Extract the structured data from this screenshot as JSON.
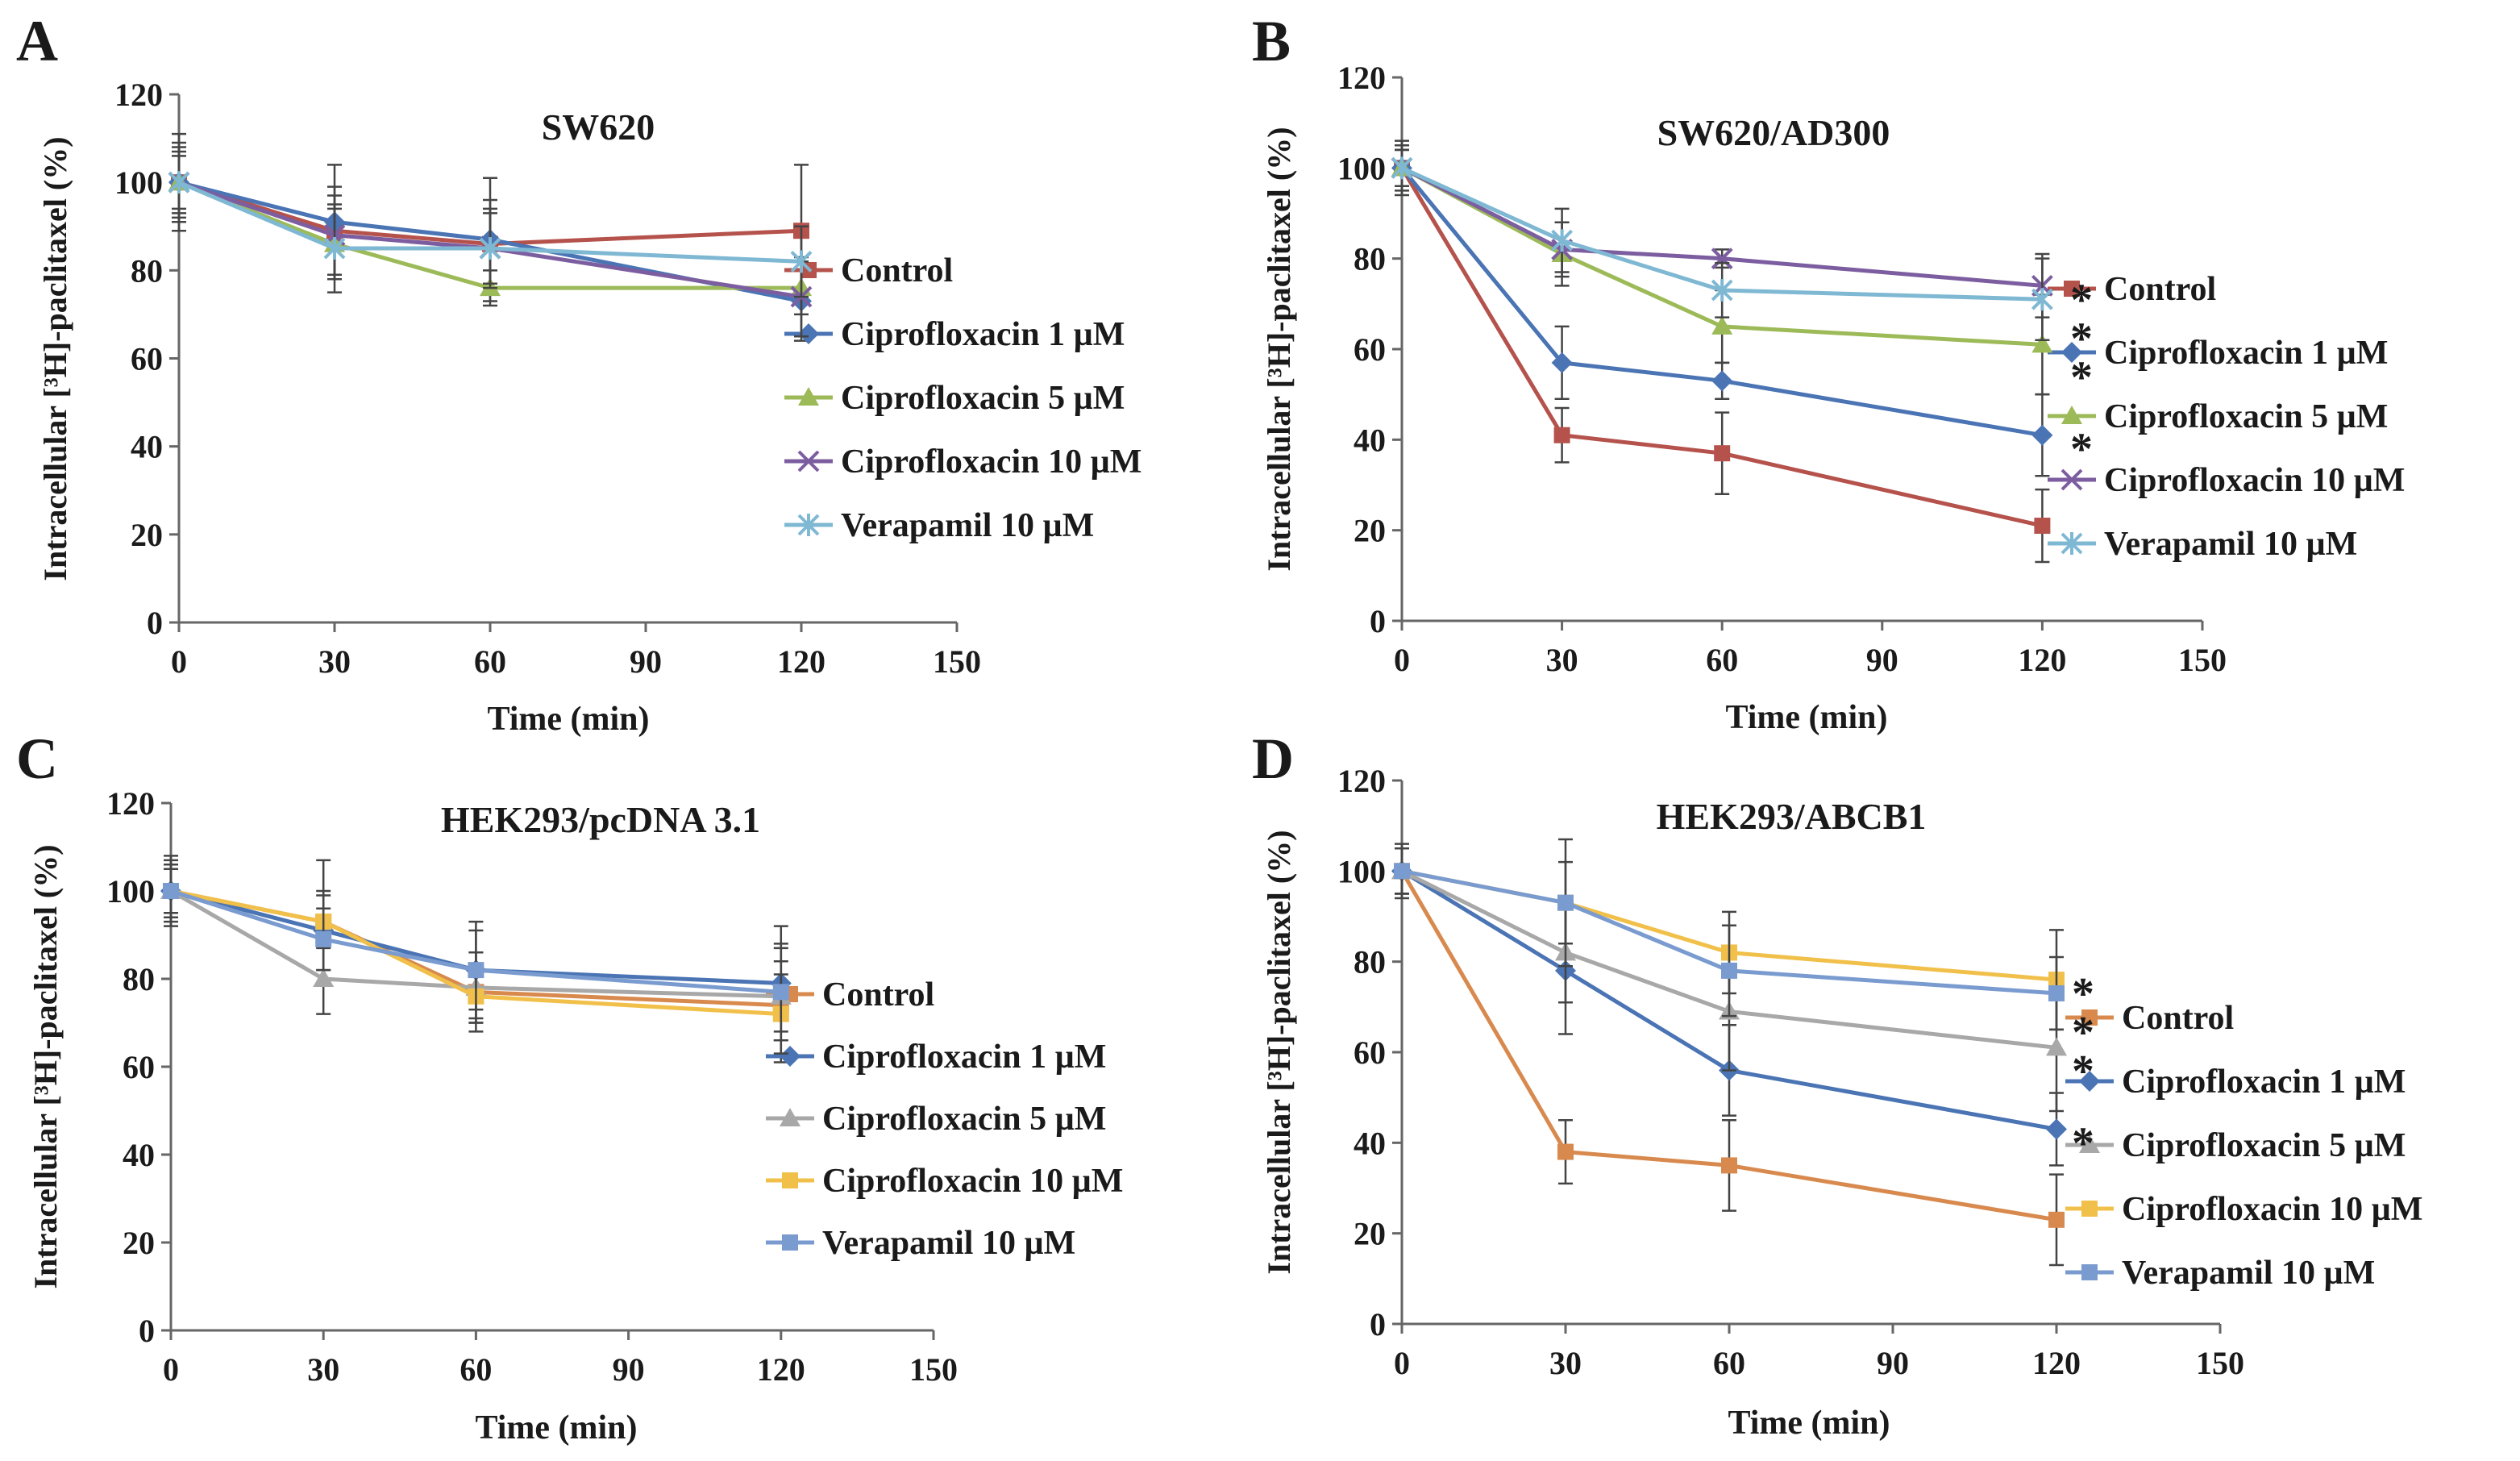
{
  "chart_data": [
    {
      "panel": "A",
      "type": "line",
      "title": "SW620",
      "xlabel": "Time (min)",
      "ylabel": "Intracellular [³H]-paclitaxel (%)",
      "xlim": [
        0,
        150
      ],
      "ylim": [
        0,
        120
      ],
      "xticks": [
        0,
        30,
        60,
        90,
        120,
        150
      ],
      "yticks": [
        0,
        20,
        40,
        60,
        80,
        100,
        120
      ],
      "x": [
        0,
        30,
        60,
        120
      ],
      "series": [
        {
          "name": "Control",
          "color": "#b5524c",
          "marker": "square",
          "values": [
            100,
            89,
            86,
            89
          ],
          "errors": [
            8,
            10,
            10,
            15
          ]
        },
        {
          "name": "Ciprofloxacin 1 µM",
          "color": "#4a74b4",
          "marker": "diamond",
          "values": [
            100,
            91,
            87,
            73
          ],
          "errors": [
            7,
            13,
            14,
            9
          ]
        },
        {
          "name": "Ciprofloxacin 5 µM",
          "color": "#9dba58",
          "marker": "triangle",
          "values": [
            100,
            86,
            76,
            76
          ],
          "errors": [
            6,
            8,
            4,
            6
          ]
        },
        {
          "name": "Ciprofloxacin 10 µM",
          "color": "#7c5ea0",
          "marker": "x",
          "values": [
            100,
            88,
            85,
            74
          ],
          "errors": [
            9,
            9,
            9,
            9
          ]
        },
        {
          "name": "Verapamil 10 µM",
          "color": "#7fb8d3",
          "marker": "star",
          "values": [
            100,
            85,
            85,
            82
          ],
          "errors": [
            11,
            10,
            8,
            8
          ]
        }
      ],
      "annotations": []
    },
    {
      "panel": "B",
      "type": "line",
      "title": "SW620/AD300",
      "xlabel": "Time (min)",
      "ylabel": "Intracellular [³H]-paclitaxel (%)",
      "xlim": [
        0,
        150
      ],
      "ylim": [
        0,
        120
      ],
      "xticks": [
        0,
        30,
        60,
        90,
        120,
        150
      ],
      "yticks": [
        0,
        20,
        40,
        60,
        80,
        100,
        120
      ],
      "x": [
        0,
        30,
        60,
        120
      ],
      "series": [
        {
          "name": "Control",
          "color": "#b5524c",
          "marker": "square",
          "values": [
            100,
            41,
            37,
            21
          ],
          "errors": [
            6,
            6,
            9,
            8
          ]
        },
        {
          "name": "Ciprofloxacin 1 µM",
          "color": "#4a74b4",
          "marker": "diamond",
          "values": [
            100,
            57,
            53,
            41
          ],
          "errors": [
            5,
            8,
            4,
            9
          ]
        },
        {
          "name": "Ciprofloxacin 5 µM",
          "color": "#9dba58",
          "marker": "triangle",
          "values": [
            100,
            81,
            65,
            61
          ],
          "errors": [
            4,
            7,
            8,
            11
          ]
        },
        {
          "name": "Ciprofloxacin 10 µM",
          "color": "#7c5ea0",
          "marker": "x",
          "values": [
            100,
            82,
            80,
            74
          ],
          "errors": [
            4,
            6,
            2,
            7
          ]
        },
        {
          "name": "Verapamil 10 µM",
          "color": "#7fb8d3",
          "marker": "star",
          "values": [
            100,
            84,
            73,
            71
          ],
          "errors": [
            4,
            7,
            6,
            9
          ]
        }
      ],
      "annotations": [
        "*",
        "*",
        "*",
        "*"
      ]
    },
    {
      "panel": "C",
      "type": "line",
      "title": "HEK293/pcDNA 3.1",
      "xlabel": "Time (min)",
      "ylabel": "Intracellular [³H]-paclitaxel (%)",
      "xlim": [
        0,
        150
      ],
      "ylim": [
        0,
        120
      ],
      "xticks": [
        0,
        30,
        60,
        90,
        120,
        150
      ],
      "yticks": [
        0,
        20,
        40,
        60,
        80,
        100,
        120
      ],
      "x": [
        0,
        30,
        60,
        120
      ],
      "series": [
        {
          "name": "Control",
          "color": "#d88a4e",
          "marker": "square",
          "values": [
            100,
            93,
            77,
            74
          ],
          "errors": [
            6,
            14,
            9,
            13
          ]
        },
        {
          "name": "Ciprofloxacin 1 µM",
          "color": "#4a74b4",
          "marker": "diamond",
          "values": [
            100,
            91,
            82,
            79
          ],
          "errors": [
            8,
            9,
            11,
            13
          ]
        },
        {
          "name": "Ciprofloxacin 5 µM",
          "color": "#a8a8a8",
          "marker": "triangle",
          "values": [
            100,
            80,
            78,
            76
          ],
          "errors": [
            7,
            8,
            8,
            8
          ]
        },
        {
          "name": "Ciprofloxacin 10 µM",
          "color": "#f1c04a",
          "marker": "square",
          "values": [
            100,
            93,
            76,
            72
          ],
          "errors": [
            5,
            6,
            6,
            9
          ]
        },
        {
          "name": "Verapamil 10 µM",
          "color": "#7a9bcf",
          "marker": "square",
          "values": [
            100,
            89,
            82,
            77
          ],
          "errors": [
            6,
            7,
            9,
            11
          ]
        }
      ],
      "annotations": []
    },
    {
      "panel": "D",
      "type": "line",
      "title": "HEK293/ABCB1",
      "xlabel": "Time (min)",
      "ylabel": "Intracellular [³H]-paclitaxel (%)",
      "xlim": [
        0,
        150
      ],
      "ylim": [
        0,
        120
      ],
      "xticks": [
        0,
        30,
        60,
        90,
        120,
        150
      ],
      "yticks": [
        0,
        20,
        40,
        60,
        80,
        100,
        120
      ],
      "x": [
        0,
        30,
        60,
        120
      ],
      "series": [
        {
          "name": "Control",
          "color": "#d88a4e",
          "marker": "square",
          "values": [
            100,
            38,
            35,
            23
          ],
          "errors": [
            5,
            7,
            10,
            10
          ]
        },
        {
          "name": "Ciprofloxacin 1 µM",
          "color": "#4a74b4",
          "marker": "diamond",
          "values": [
            100,
            78,
            56,
            43
          ],
          "errors": [
            6,
            14,
            10,
            8
          ]
        },
        {
          "name": "Ciprofloxacin 5 µM",
          "color": "#a8a8a8",
          "marker": "triangle",
          "values": [
            100,
            82,
            69,
            61
          ],
          "errors": [
            5,
            11,
            13,
            14
          ]
        },
        {
          "name": "Ciprofloxacin 10 µM",
          "color": "#f1c04a",
          "marker": "square",
          "values": [
            100,
            93,
            82,
            76
          ],
          "errors": [
            5,
            14,
            9,
            11
          ]
        },
        {
          "name": "Verapamil 10 µM",
          "color": "#7a9bcf",
          "marker": "square",
          "values": [
            100,
            93,
            78,
            73
          ],
          "errors": [
            5,
            9,
            10,
            8
          ]
        }
      ],
      "annotations": [
        "*",
        "*",
        "*",
        "*"
      ]
    }
  ]
}
